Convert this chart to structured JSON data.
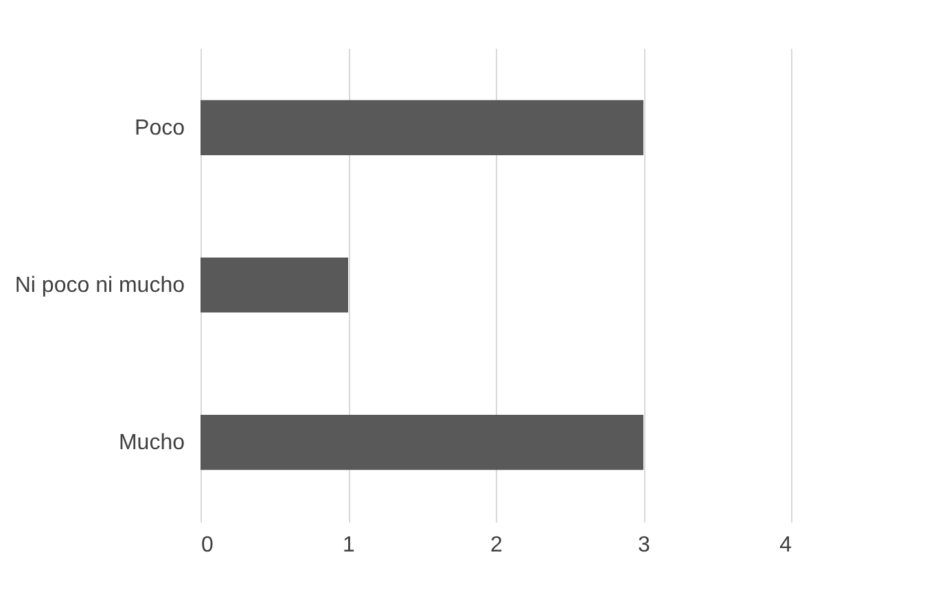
{
  "chart_data": {
    "type": "bar",
    "orientation": "horizontal",
    "categories": [
      "Poco",
      "Ni poco ni mucho",
      "Mucho"
    ],
    "values": [
      3,
      1,
      3
    ],
    "color": "#595959",
    "xlim": [
      0,
      4
    ],
    "xticks": [
      0,
      1,
      2,
      3,
      4
    ],
    "grid": "x"
  }
}
